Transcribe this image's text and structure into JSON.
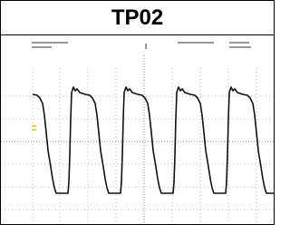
{
  "title": "TP02"
}
